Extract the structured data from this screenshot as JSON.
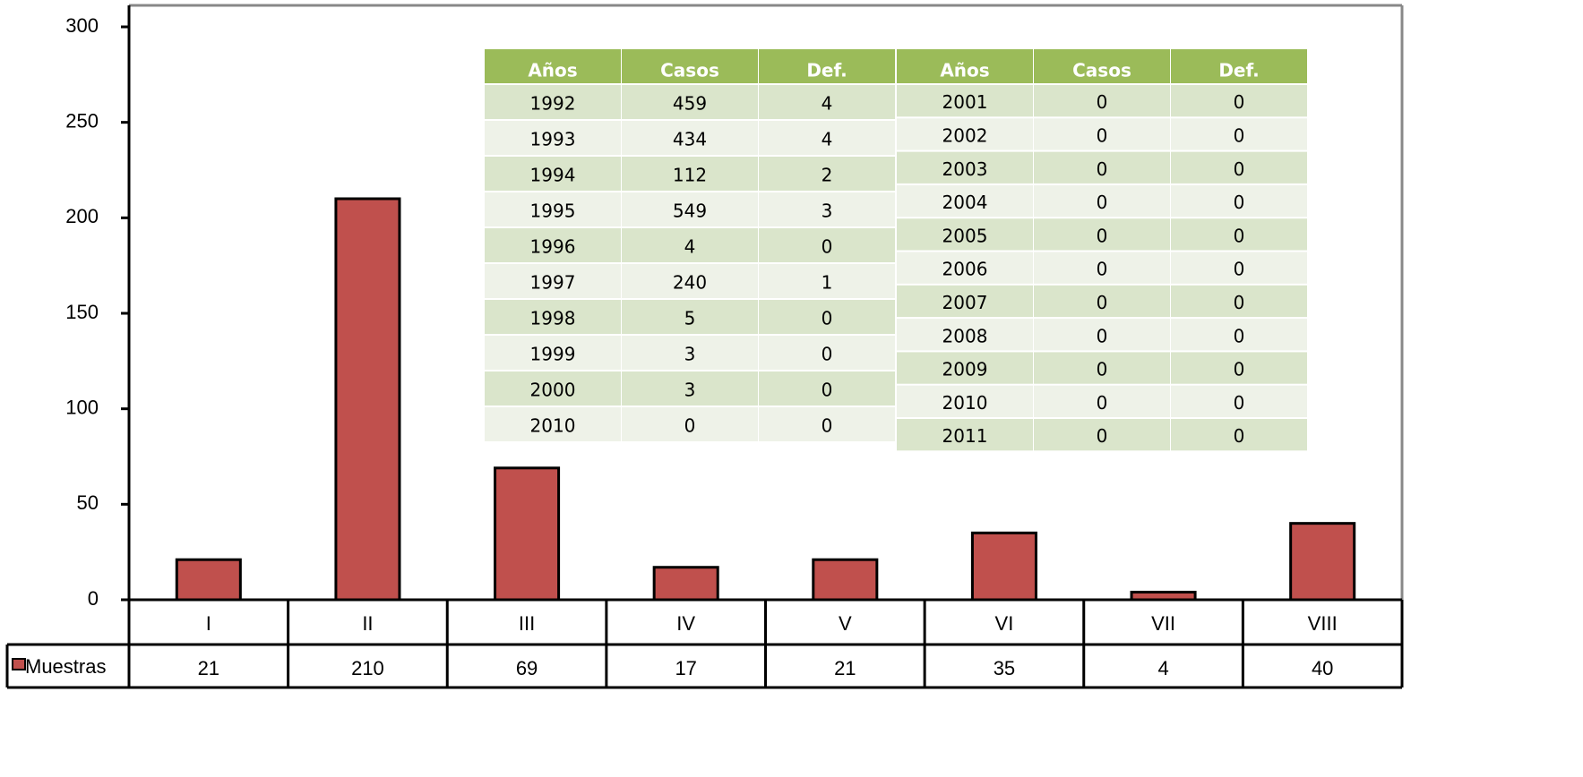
{
  "chart_data": {
    "type": "bar",
    "categories": [
      "I",
      "II",
      "III",
      "IV",
      "V",
      "VI",
      "VII",
      "VIII"
    ],
    "series": [
      {
        "name": "Muestras",
        "color": "#c0504d",
        "values": [
          21,
          210,
          69,
          17,
          21,
          35,
          4,
          40
        ]
      }
    ],
    "ylim": [
      0,
      300
    ],
    "yticks": [
      0,
      50,
      100,
      150,
      200,
      250,
      300
    ]
  },
  "tables": [
    {
      "header": [
        "Años",
        "Casos",
        "Def."
      ],
      "rows": [
        [
          1992,
          459,
          4
        ],
        [
          1993,
          434,
          4
        ],
        [
          1994,
          112,
          2
        ],
        [
          1995,
          549,
          3
        ],
        [
          1996,
          4,
          0
        ],
        [
          1997,
          240,
          1
        ],
        [
          1998,
          5,
          0
        ],
        [
          1999,
          3,
          0
        ],
        [
          2000,
          3,
          0
        ],
        [
          2010,
          0,
          0
        ]
      ]
    },
    {
      "header": [
        "Años",
        "Casos",
        "Def."
      ],
      "rows": [
        [
          2001,
          0,
          0
        ],
        [
          2002,
          0,
          0
        ],
        [
          2003,
          0,
          0
        ],
        [
          2004,
          0,
          0
        ],
        [
          2005,
          0,
          0
        ],
        [
          2006,
          0,
          0
        ],
        [
          2007,
          0,
          0
        ],
        [
          2008,
          0,
          0
        ],
        [
          2009,
          0,
          0
        ],
        [
          2010,
          0,
          0
        ],
        [
          2011,
          0,
          0
        ]
      ]
    }
  ]
}
